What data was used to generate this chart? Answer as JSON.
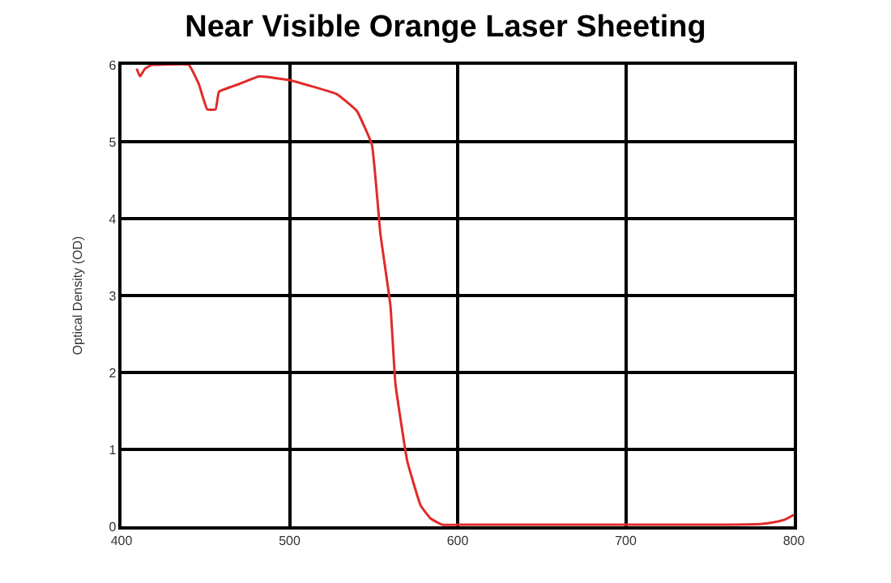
{
  "chart_data": {
    "type": "line",
    "title": "Near Visible Orange Laser Sheeting",
    "ylabel": "Optical Density (OD)",
    "xlim": [
      400,
      800
    ],
    "ylim": [
      0,
      6
    ],
    "xticks": [
      400,
      500,
      600,
      700,
      800
    ],
    "yticks": [
      0,
      1,
      2,
      3,
      4,
      5,
      6
    ],
    "grid": true,
    "series": [
      {
        "color": "#e02a2a",
        "x": [
          409,
          411,
          414,
          418,
          422,
          440,
          446,
          451,
          456,
          458,
          470,
          482,
          500,
          528,
          540,
          549,
          554,
          560,
          563,
          570,
          578,
          584,
          591,
          600,
          650,
          700,
          750,
          780,
          790,
          795,
          800
        ],
        "values": [
          5.95,
          5.85,
          5.95,
          6.0,
          6.0,
          6.0,
          5.75,
          5.42,
          5.42,
          5.65,
          5.75,
          5.85,
          5.8,
          5.62,
          5.4,
          4.96,
          3.81,
          2.87,
          1.85,
          0.85,
          0.27,
          0.1,
          0.02,
          0.02,
          0.02,
          0.02,
          0.02,
          0.03,
          0.06,
          0.09,
          0.15
        ]
      }
    ]
  }
}
